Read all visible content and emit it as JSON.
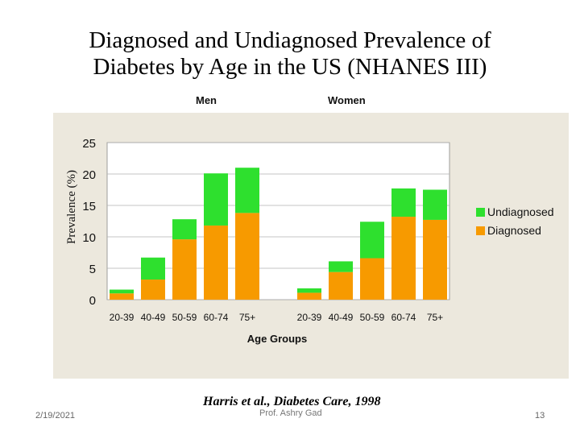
{
  "slide": {
    "title_line1": "Diagnosed and Undiagnosed Prevalence of",
    "title_line2": "Diabetes by Age in the US (NHANES III)",
    "citation": "Harris et al., Diabetes Care, 1998",
    "date": "2/19/2021",
    "author": "Prof. Ashry Gad",
    "page": "13"
  },
  "colors": {
    "diagnosed": "#f79a00",
    "undiagnosed": "#2ee02e",
    "panel": "#ece8dd"
  },
  "chart_data": {
    "type": "bar",
    "stacked": true,
    "title": "Diagnosed and Undiagnosed Prevalence of Diabetes by Age in the US (NHANES III)",
    "xlabel": "Age Groups",
    "ylabel": "Prevalence (%)",
    "ylim": [
      0,
      25
    ],
    "yticks": [
      0,
      5,
      10,
      15,
      20,
      25
    ],
    "grid": true,
    "legend_position": "right",
    "groups": [
      {
        "name": "Men",
        "categories": [
          "20-39",
          "40-49",
          "50-59",
          "60-74",
          "75+"
        ]
      },
      {
        "name": "Women",
        "categories": [
          "20-39",
          "40-49",
          "50-59",
          "60-74",
          "75+"
        ]
      }
    ],
    "series": [
      {
        "name": "Diagnosed",
        "values": [
          1.0,
          3.2,
          9.6,
          11.8,
          13.8,
          1.1,
          4.4,
          6.6,
          13.2,
          12.7
        ]
      },
      {
        "name": "Undiagnosed",
        "values": [
          0.6,
          3.5,
          3.2,
          8.3,
          7.2,
          0.7,
          1.7,
          5.8,
          4.5,
          4.8
        ]
      }
    ],
    "legend": [
      "Undiagnosed",
      "Diagnosed"
    ]
  }
}
